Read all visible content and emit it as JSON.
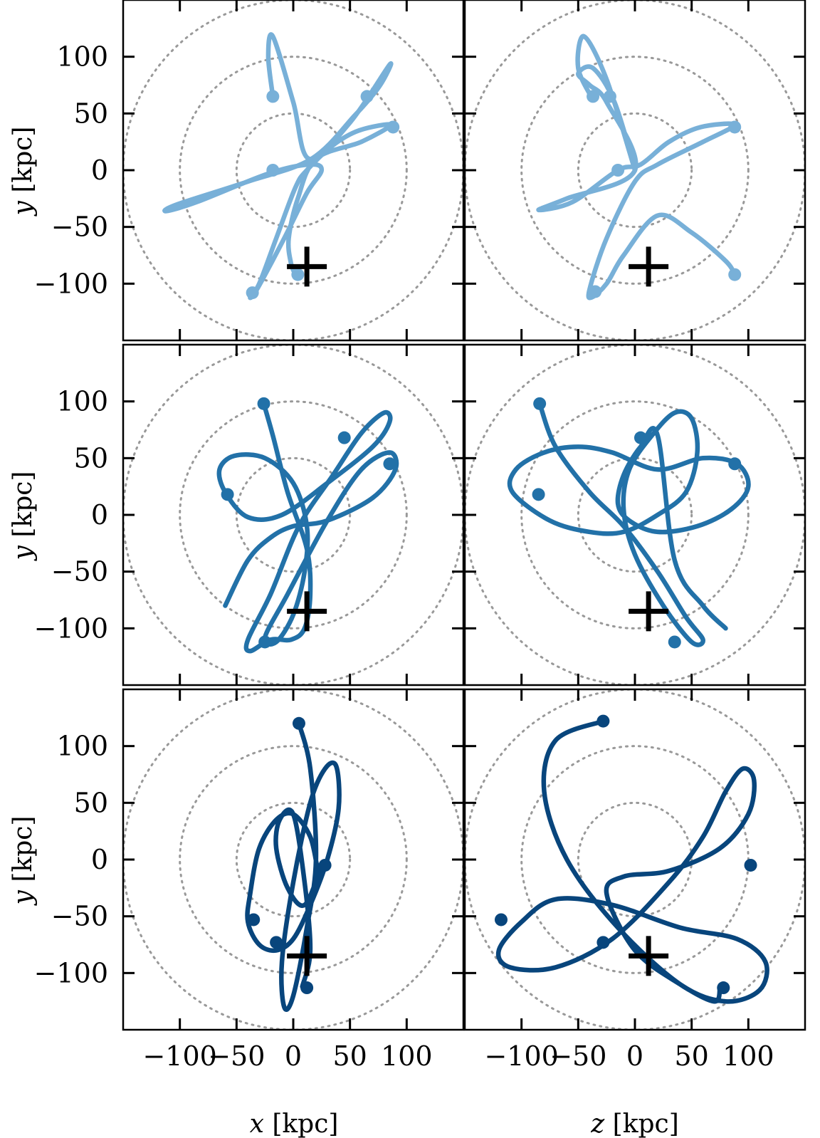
{
  "figure": {
    "background": "#ffffff",
    "frame_color": "#000000",
    "circle_color": "#999999"
  },
  "axes": {
    "xlabels": [
      {
        "var": "x",
        "unit": " [kpc]"
      },
      {
        "var": "z",
        "unit": " [kpc]"
      }
    ],
    "ylabel": {
      "var": "y",
      "unit": " [kpc]"
    },
    "xticks": [
      -100,
      -50,
      0,
      50,
      100
    ],
    "yticks": [
      100,
      50,
      0,
      -50,
      -100
    ],
    "xtick_labels": [
      "−100",
      "−50",
      "0",
      "50",
      "100"
    ],
    "ytick_labels": [
      "100",
      "50",
      "0",
      "−50",
      "−100"
    ],
    "xlim": [
      -150,
      150
    ],
    "ylim": [
      -150,
      150
    ],
    "reference_circle_radii": [
      50,
      100,
      150
    ],
    "marker": {
      "x": 12,
      "y": -85
    }
  },
  "chart_data": [
    {
      "type": "line",
      "row": 0,
      "col": 0,
      "color": "#78b0d8",
      "x": [
        -18,
        -22,
        -18,
        0,
        14,
        50,
        85,
        76,
        54,
        16,
        -40,
        -102,
        -112,
        -85,
        -22,
        14,
        25,
        12,
        -8,
        -32,
        -38,
        -30,
        -15,
        2,
        12,
        35,
        58,
        86,
        60,
        20,
        4,
        -4,
        -2,
        2
      ],
      "y": [
        65,
        100,
        118,
        60,
        10,
        42,
        93,
        74,
        48,
        10,
        -10,
        -30,
        -36,
        -28,
        -3,
        5,
        0,
        -20,
        -60,
        -105,
        -112,
        -100,
        -60,
        -15,
        0,
        22,
        35,
        40,
        25,
        10,
        -25,
        -60,
        -82,
        -92
      ],
      "points": [
        {
          "x": -18,
          "y": 65
        },
        {
          "x": 65,
          "y": 65
        },
        {
          "x": 88,
          "y": 38
        },
        {
          "x": -18,
          "y": 0
        },
        {
          "x": -36,
          "y": -108
        },
        {
          "x": 4,
          "y": -92
        }
      ]
    },
    {
      "type": "line",
      "row": 0,
      "col": 1,
      "color": "#78b0d8",
      "x": [
        -37,
        -50,
        -45,
        -25,
        0,
        -18,
        -37,
        -50,
        -40,
        -25,
        0,
        -60,
        -85,
        -55,
        -15,
        5,
        30,
        58,
        88,
        60,
        20,
        0,
        -25,
        -40,
        -38,
        -25,
        -10,
        20,
        50,
        80,
        88
      ],
      "y": [
        62,
        90,
        118,
        80,
        0,
        60,
        90,
        85,
        75,
        60,
        0,
        -25,
        -35,
        -28,
        0,
        5,
        25,
        38,
        40,
        25,
        5,
        -10,
        -60,
        -105,
        -112,
        -100,
        -75,
        -40,
        -55,
        -80,
        -92
      ],
      "points": [
        {
          "x": -37,
          "y": 65
        },
        {
          "x": -22,
          "y": 65
        },
        {
          "x": 88,
          "y": 38
        },
        {
          "x": -15,
          "y": 0
        },
        {
          "x": -35,
          "y": -107
        },
        {
          "x": 88,
          "y": -92
        }
      ]
    },
    {
      "type": "line",
      "row": 1,
      "col": 0,
      "color": "#2271a8",
      "x": [
        -26,
        -18,
        -5,
        12,
        15,
        10,
        -2,
        -20,
        -38,
        -40,
        -20,
        5,
        35,
        60,
        80,
        85,
        70,
        30,
        -10,
        -40,
        -60,
        -65,
        -52,
        -25,
        0,
        12,
        10,
        0,
        -15,
        -25,
        -5,
        30,
        60,
        85,
        90,
        70,
        30,
        0,
        -20,
        -40,
        -60
      ],
      "y": [
        98,
        70,
        20,
        -30,
        -70,
        -100,
        -110,
        -110,
        -120,
        -110,
        -70,
        -10,
        35,
        72,
        90,
        82,
        60,
        28,
        0,
        -2,
        20,
        40,
        52,
        50,
        28,
        -10,
        -50,
        -88,
        -112,
        -108,
        -70,
        -5,
        40,
        55,
        40,
        15,
        -5,
        -10,
        -20,
        -40,
        -80
      ],
      "points": [
        {
          "x": -26,
          "y": 98
        },
        {
          "x": 45,
          "y": 68
        },
        {
          "x": 85,
          "y": 45
        },
        {
          "x": -58,
          "y": 18
        },
        {
          "x": -25,
          "y": -112
        }
      ]
    },
    {
      "type": "line",
      "row": 1,
      "col": 1,
      "color": "#2271a8",
      "x": [
        -84,
        -70,
        -40,
        -10,
        20,
        45,
        60,
        50,
        25,
        0,
        -10,
        -5,
        15,
        35,
        50,
        55,
        45,
        20,
        -10,
        -40,
        -75,
        -108,
        -105,
        -80,
        -50,
        -20,
        20,
        60,
        90,
        100,
        85,
        55,
        20,
        -5,
        -15,
        -10,
        5,
        20,
        35,
        60,
        80
      ],
      "y": [
        98,
        60,
        20,
        -10,
        -50,
        -90,
        -110,
        -112,
        -80,
        -35,
        5,
        40,
        70,
        90,
        85,
        55,
        20,
        0,
        -15,
        -15,
        -5,
        20,
        40,
        55,
        60,
        55,
        40,
        50,
        45,
        25,
        5,
        -10,
        -15,
        -5,
        10,
        35,
        60,
        70,
        -40,
        -80,
        -100
      ],
      "points": [
        {
          "x": -84,
          "y": 98
        },
        {
          "x": 5,
          "y": 68
        },
        {
          "x": 88,
          "y": 45
        },
        {
          "x": -85,
          "y": 18
        },
        {
          "x": 35,
          "y": -112
        }
      ]
    },
    {
      "type": "line",
      "row": 2,
      "col": 0,
      "color": "#08457c",
      "x": [
        5,
        15,
        20,
        12,
        0,
        -8,
        -10,
        0,
        15,
        28,
        38,
        40,
        30,
        15,
        0,
        -15,
        -30,
        -40,
        -38,
        -30,
        -15,
        0,
        15,
        22,
        25,
        10,
        -5,
        -15,
        -12,
        0,
        10,
        15,
        8
      ],
      "y": [
        120,
        80,
        0,
        -60,
        -120,
        -130,
        -90,
        -20,
        50,
        80,
        82,
        45,
        0,
        -40,
        -70,
        -80,
        -75,
        -55,
        -30,
        10,
        35,
        40,
        20,
        -10,
        -5,
        -40,
        -25,
        10,
        35,
        40,
        -20,
        -80,
        -112
      ],
      "points": [
        {
          "x": 5,
          "y": 120
        },
        {
          "x": 28,
          "y": -5
        },
        {
          "x": -35,
          "y": -53
        },
        {
          "x": -15,
          "y": -73
        },
        {
          "x": 12,
          "y": -113
        }
      ]
    },
    {
      "type": "line",
      "row": 2,
      "col": 1,
      "color": "#08457c",
      "x": [
        -28,
        -70,
        -80,
        -60,
        -15,
        40,
        80,
        110,
        115,
        90,
        40,
        -20,
        -70,
        -100,
        -120,
        -110,
        -70,
        -20,
        30,
        60,
        80,
        95,
        105,
        100,
        75,
        30,
        -10,
        -25,
        0,
        40,
        70,
        75
      ],
      "y": [
        122,
        105,
        60,
        0,
        -60,
        -110,
        -125,
        -115,
        -90,
        -70,
        -60,
        -40,
        -35,
        -55,
        -80,
        -95,
        -95,
        -70,
        -20,
        20,
        60,
        80,
        70,
        40,
        10,
        -10,
        -15,
        -30,
        -80,
        -110,
        -125,
        -113
      ],
      "points": [
        {
          "x": -28,
          "y": 122
        },
        {
          "x": 102,
          "y": -5
        },
        {
          "x": -118,
          "y": -53
        },
        {
          "x": -28,
          "y": -73
        },
        {
          "x": 78,
          "y": -113
        }
      ]
    }
  ]
}
